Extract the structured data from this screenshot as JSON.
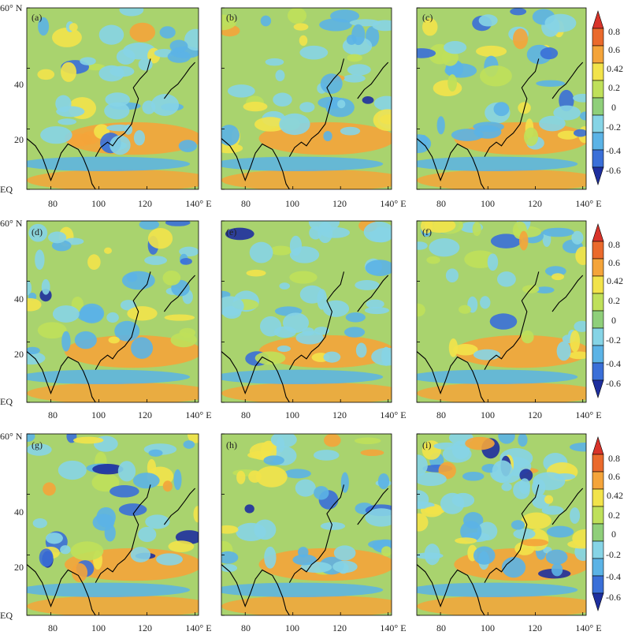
{
  "panel_labels": [
    "(a)",
    "(b)",
    "(c)",
    "(d)",
    "(e)",
    "(f)",
    "(g)",
    "(h)",
    "(i)"
  ],
  "axes": {
    "lat_ticks": [
      "60° N",
      "40",
      "20",
      "EQ"
    ],
    "lon_ticks": [
      "80",
      "100",
      "120",
      "140° E"
    ],
    "lat_range": [
      0,
      60
    ],
    "lon_range": [
      70,
      140
    ]
  },
  "colorbar": {
    "tick_labels": [
      "0.8",
      "0.6",
      "0.42",
      "0.2",
      "0",
      "-0.2",
      "-0.4",
      "-0.6"
    ],
    "levels": [
      -0.6,
      -0.4,
      -0.2,
      0,
      0.2,
      0.42,
      0.6,
      0.8
    ],
    "colors": [
      "#1e2f9e",
      "#3a6fd8",
      "#5bb3e6",
      "#86d4e6",
      "#8fcf7a",
      "#bfe05a",
      "#f2e34a",
      "#f4a43a",
      "#ea6a2c",
      "#d8342a"
    ]
  },
  "map": {
    "background": "#a9d36e",
    "coastline_color": "#000000"
  }
}
